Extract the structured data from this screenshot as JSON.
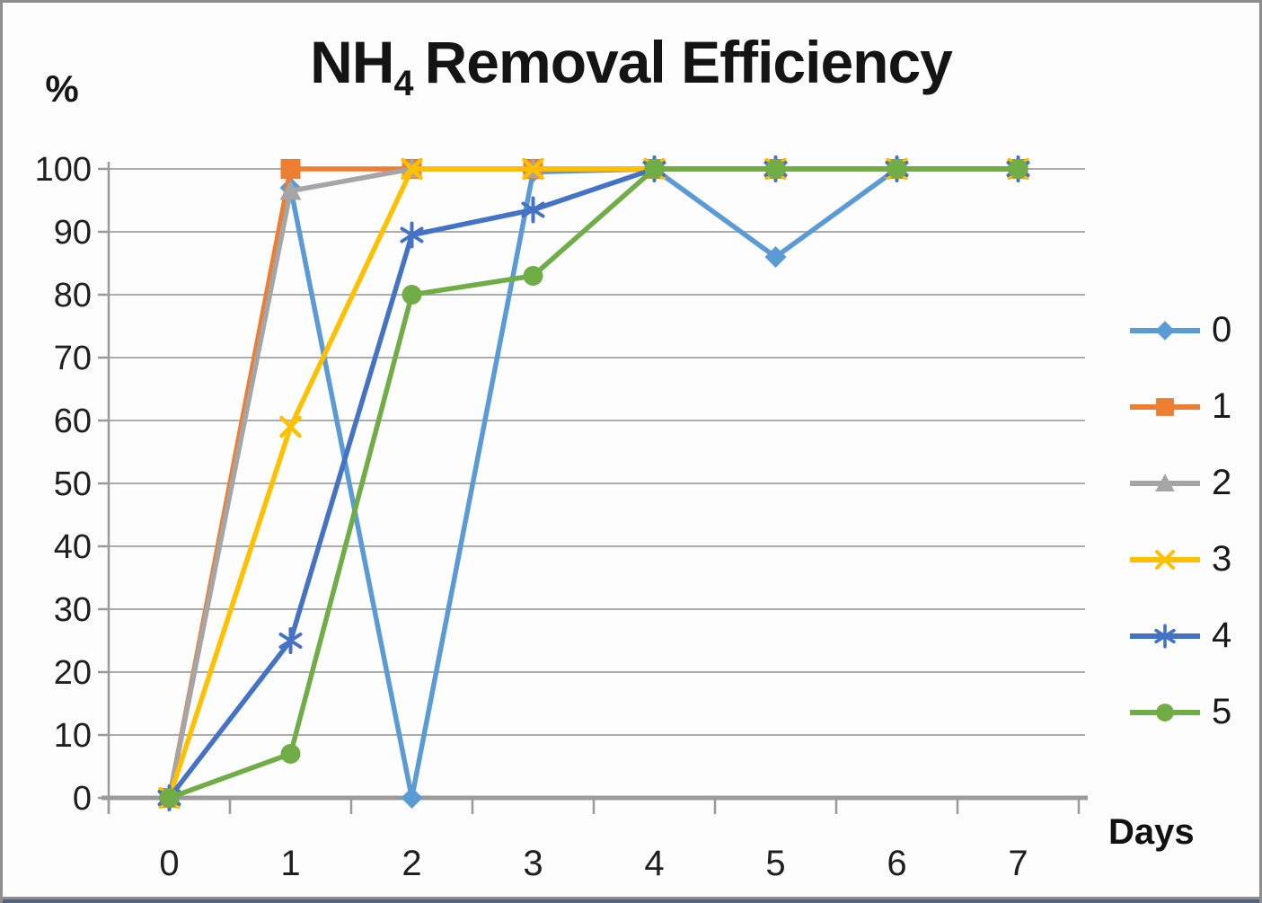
{
  "chart_data": {
    "type": "line",
    "title": "NH4 Removal Efficiency",
    "title_parts": {
      "main": "NH",
      "subscript": "4",
      "rest": "Removal Efficiency"
    },
    "ylabel": "%",
    "xlabel": "Days",
    "x_tick_labels": [
      "0",
      "1",
      "2",
      "3",
      "4",
      "5",
      "6",
      "7"
    ],
    "y_tick_labels": [
      "0",
      "10",
      "20",
      "30",
      "40",
      "50",
      "60",
      "70",
      "80",
      "90",
      "100"
    ],
    "ylim": [
      0,
      100
    ],
    "y_tick_step": 10,
    "grid": true,
    "legend_position": "right",
    "colors": {
      "grid": "#ACACAC",
      "axis": "#9A9A9A",
      "text": "#1C1C1C"
    },
    "series": [
      {
        "name": "0",
        "color": "#5B9BD5",
        "marker": "diamond",
        "values": [
          0,
          97,
          0,
          99.5,
          100,
          86,
          100,
          100
        ]
      },
      {
        "name": "1",
        "color": "#ED7D31",
        "marker": "square",
        "values": [
          0,
          100,
          100,
          100,
          100,
          100,
          100,
          100
        ]
      },
      {
        "name": "2",
        "color": "#A5A5A5",
        "marker": "triangle",
        "values": [
          0,
          96.5,
          100,
          100,
          100,
          100,
          100,
          100
        ]
      },
      {
        "name": "3",
        "color": "#FFC000",
        "marker": "x",
        "values": [
          0,
          59,
          100,
          100,
          100,
          100,
          100,
          100
        ]
      },
      {
        "name": "4",
        "color": "#4472C4",
        "marker": "asterisk",
        "values": [
          0,
          25,
          89.5,
          93.5,
          100,
          100,
          100,
          100
        ]
      },
      {
        "name": "5",
        "color": "#70AD47",
        "marker": "circle",
        "values": [
          0,
          7,
          80,
          83,
          100,
          100,
          100,
          100
        ]
      }
    ]
  }
}
